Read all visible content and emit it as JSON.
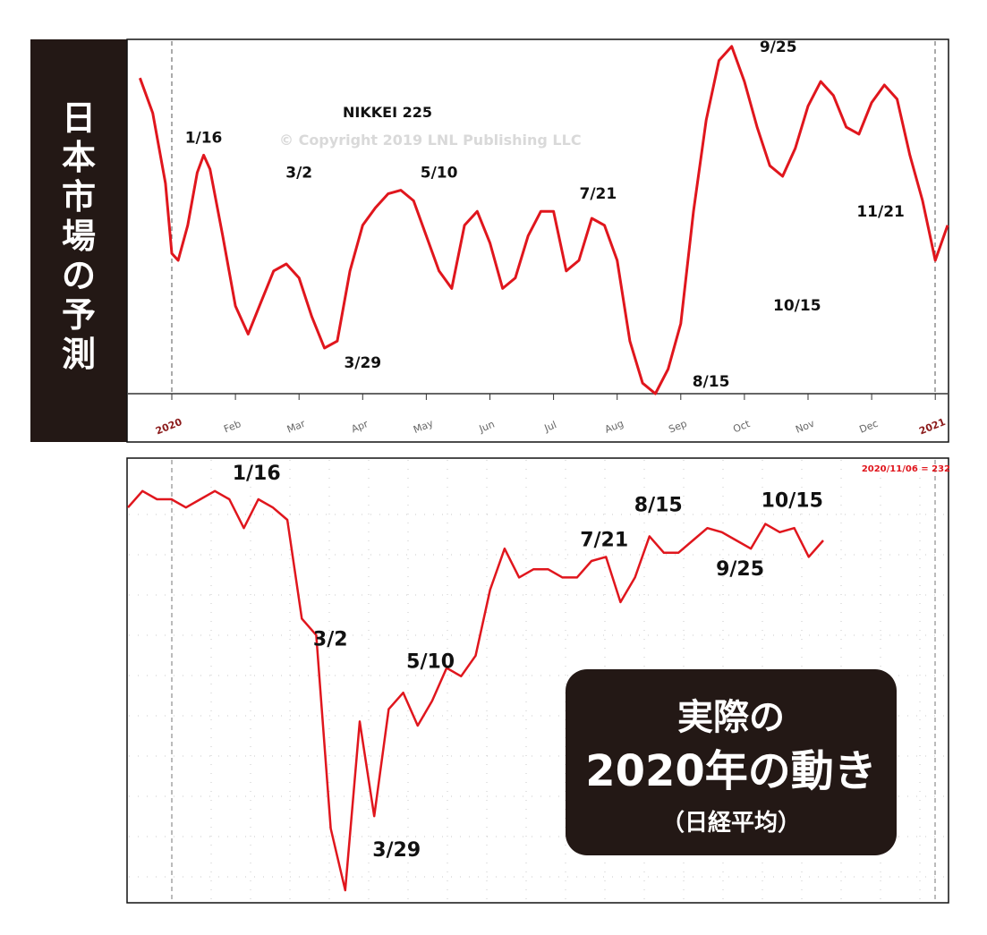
{
  "side_label": "日本市場の予測",
  "box_label": {
    "line1": "実際の",
    "line2": "2020年の動き",
    "line3": "（日経平均）"
  },
  "colors": {
    "line": "#e0161d",
    "dark": "#231815",
    "grid": "#c8c8c8",
    "watermark": "#d9d9d9"
  },
  "chart_data": [
    {
      "type": "line",
      "title": "NIKKEI 225",
      "subtitle": "© Copyright 2019 LNL Publishing LLC",
      "x_ticks": [
        "2020",
        "Feb",
        "Mar",
        "Apr",
        "May",
        "Jun",
        "Jul",
        "Aug",
        "Sep",
        "Oct",
        "Nov",
        "Dec",
        "2021"
      ],
      "y_range": [
        0,
        100
      ],
      "grid": false,
      "series": [
        {
          "x": [
            -0.5,
            -0.3,
            -0.1,
            0.0,
            0.1,
            0.25,
            0.4,
            0.5,
            0.6,
            0.8,
            1.0,
            1.2,
            1.4,
            1.6,
            1.8,
            2.0,
            2.2,
            2.4,
            2.6,
            2.8,
            3.0,
            3.2,
            3.4,
            3.6,
            3.8,
            4.0,
            4.2,
            4.4,
            4.6,
            4.8,
            5.0,
            5.2,
            5.4,
            5.6,
            5.8,
            6.0,
            6.2,
            6.4,
            6.6,
            6.8,
            7.0,
            7.2,
            7.4,
            7.6,
            7.8,
            8.0,
            8.2,
            8.4,
            8.6,
            8.8,
            9.0,
            9.2,
            9.4,
            9.6,
            9.8,
            10.0,
            10.2,
            10.4,
            10.6,
            10.8,
            11.0,
            11.2,
            11.4,
            11.6,
            11.8,
            12.0,
            12.2
          ],
          "values": [
            90,
            80,
            60,
            40,
            38,
            48,
            63,
            68,
            64,
            45,
            25,
            17,
            26,
            35,
            37,
            33,
            22,
            13,
            15,
            35,
            48,
            53,
            57,
            58,
            55,
            45,
            35,
            30,
            48,
            52,
            43,
            30,
            33,
            45,
            52,
            52,
            35,
            38,
            50,
            48,
            38,
            15,
            3,
            0,
            7,
            20,
            52,
            78,
            95,
            99,
            89,
            76,
            65,
            62,
            70,
            82,
            89,
            85,
            76,
            74,
            83,
            88,
            84,
            68,
            55,
            38,
            48
          ]
        }
      ],
      "annotations": [
        {
          "text": "1/16",
          "x": 0.5,
          "y": 68
        },
        {
          "text": "3/2",
          "x": 2.0,
          "y": 58
        },
        {
          "text": "3/29",
          "x": 3.0,
          "y": 15
        },
        {
          "text": "5/10",
          "x": 4.2,
          "y": 58
        },
        {
          "text": "7/21",
          "x": 6.7,
          "y": 52
        },
        {
          "text": "8/15",
          "x": 7.8,
          "y": 0
        },
        {
          "text": "9/25",
          "x": 8.8,
          "y": 99
        },
        {
          "text": "10/15",
          "x": 9.8,
          "y": 62
        },
        {
          "text": "11/21",
          "x": 11.0,
          "y": 74
        }
      ]
    },
    {
      "type": "line",
      "title": "",
      "corner_label": "2020/11/06 = 232",
      "y_range": [
        0,
        100
      ],
      "grid": true,
      "series": [
        {
          "values": [
            93,
            97,
            95,
            95,
            93,
            95,
            97,
            95,
            88,
            95,
            93,
            90,
            66,
            62,
            15,
            0,
            41,
            18,
            44,
            48,
            40,
            46,
            54,
            52,
            57,
            73,
            83,
            76,
            78,
            78,
            76,
            76,
            80,
            81,
            70,
            76,
            86,
            82,
            82,
            85,
            88,
            87,
            85,
            83,
            89,
            87,
            88,
            81,
            85
          ]
        }
      ],
      "annotations": [
        {
          "text": "1/16",
          "index": 9
        },
        {
          "text": "3/2",
          "index": 12
        },
        {
          "text": "3/29",
          "index": 17
        },
        {
          "text": "5/10",
          "index": 22
        },
        {
          "text": "7/21",
          "index": 33
        },
        {
          "text": "8/15",
          "index": 36
        },
        {
          "text": "9/25",
          "index": 43
        },
        {
          "text": "10/15",
          "index": 44
        }
      ]
    }
  ]
}
